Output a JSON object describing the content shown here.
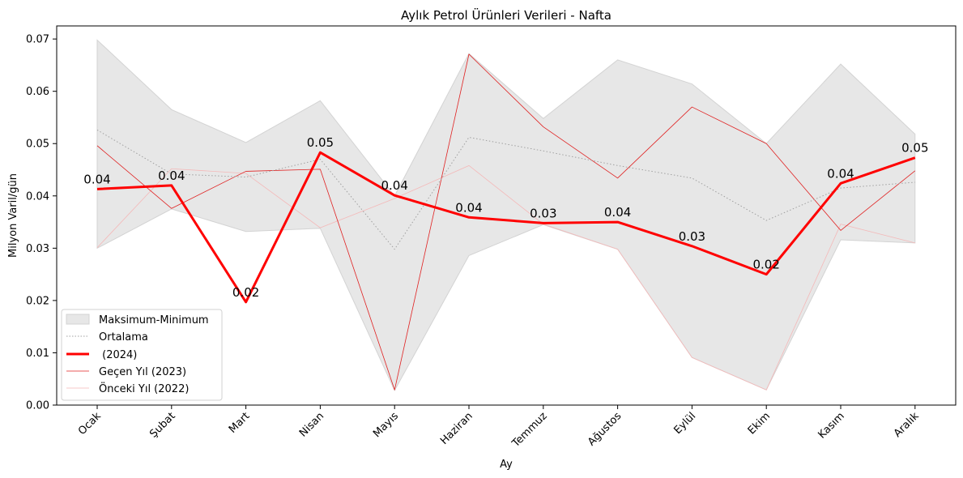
{
  "chart_data": {
    "type": "line",
    "title": "Aylık Petrol Ürünleri Verileri - Nafta",
    "xlabel": "Ay",
    "ylabel": "Milyon Varil/gün",
    "categories": [
      "Ocak",
      "Şubat",
      "Mart",
      "Nisan",
      "Mayıs",
      "Haziran",
      "Temmuz",
      "Ağustos",
      "Eylül",
      "Ekim",
      "Kasım",
      "Aralık"
    ],
    "ylim": [
      0,
      0.0725
    ],
    "yticks": [
      0.0,
      0.01,
      0.02,
      0.03,
      0.04,
      0.05,
      0.06,
      0.07
    ],
    "ytick_labels": [
      "0.00",
      "0.01",
      "0.02",
      "0.03",
      "0.04",
      "0.05",
      "0.06",
      "0.07"
    ],
    "grid": false,
    "legend_position": "lower-left",
    "band": {
      "name": "Maksimum-Minimum",
      "color": "#d3d3d3",
      "max": [
        0.0698,
        0.0565,
        0.0502,
        0.0582,
        0.04,
        0.0672,
        0.0548,
        0.066,
        0.0614,
        0.05,
        0.0652,
        0.0518
      ],
      "min": [
        0.03,
        0.0375,
        0.0332,
        0.0338,
        0.0028,
        0.0286,
        0.0345,
        0.0298,
        0.0091,
        0.0029,
        0.0316,
        0.031
      ]
    },
    "series": [
      {
        "name": "Ortalama",
        "color": "#a0a0a0",
        "style": "dotted",
        "values": [
          0.0526,
          0.0442,
          0.0436,
          0.047,
          0.0298,
          0.0512,
          0.0486,
          0.0458,
          0.0434,
          0.0353,
          0.0415,
          0.0426
        ]
      },
      {
        "name": " (2024)",
        "color": "#ff0000",
        "style": "bold",
        "values": [
          0.0413,
          0.042,
          0.0197,
          0.0483,
          0.0401,
          0.0359,
          0.0348,
          0.035,
          0.0304,
          0.025,
          0.0424,
          0.0473
        ],
        "data_labels": [
          "0.04",
          "0.04",
          "0.02",
          "0.05",
          "0.04",
          "0.04",
          "0.03",
          "0.04",
          "0.03",
          "0.02",
          "0.04",
          "0.05"
        ]
      },
      {
        "name": "Geçen Yıl (2023)",
        "color": "#e02020",
        "style": "thin",
        "values": [
          0.0496,
          0.0376,
          0.0447,
          0.0451,
          0.0029,
          0.0671,
          0.0532,
          0.0434,
          0.057,
          0.05,
          0.0334,
          0.0448
        ]
      },
      {
        "name": "Önceki Yıl (2022)",
        "color": "#f4b8b8",
        "style": "faint",
        "values": [
          0.0301,
          0.0452,
          0.0443,
          0.0339,
          0.0395,
          0.0458,
          0.0346,
          0.0298,
          0.0091,
          0.0029,
          0.0346,
          0.031
        ]
      }
    ]
  }
}
